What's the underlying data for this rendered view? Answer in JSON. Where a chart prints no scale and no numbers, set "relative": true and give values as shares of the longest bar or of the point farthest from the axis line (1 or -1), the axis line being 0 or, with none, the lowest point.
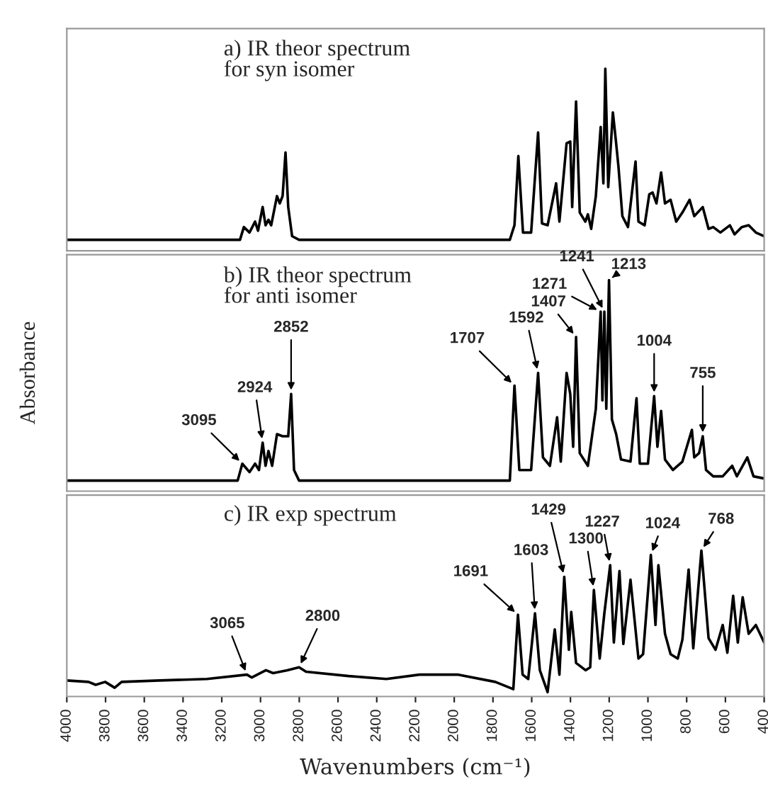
{
  "chart_data": [
    {
      "type": "line",
      "title": "a) IR theor spectrum\nfor syn isomer",
      "relative": true,
      "xlim": [
        4000,
        400
      ],
      "tick_labels": false,
      "grid": false,
      "series": [
        {
          "color": "#000000",
          "x": [
            4000,
            3106,
            3086,
            3057,
            3028,
            3013,
            2989,
            2974,
            2959,
            2945,
            2915,
            2901,
            2886,
            2871,
            2857,
            2837,
            2801,
            1713,
            1689,
            1669,
            1645,
            1603,
            1567,
            1547,
            1518,
            1474,
            1457,
            1420,
            1401,
            1391,
            1371,
            1352,
            1323,
            1310,
            1293,
            1269,
            1244,
            1230,
            1220,
            1205,
            1181,
            1166,
            1152,
            1132,
            1103,
            1064,
            1049,
            1017,
            993,
            976,
            956,
            932,
            912,
            883,
            854,
            822,
            785,
            761,
            717,
            687,
            663,
            626,
            577,
            553,
            516,
            480,
            443,
            400
          ],
          "values": [
            0.06,
            0.06,
            0.13,
            0.1,
            0.16,
            0.11,
            0.24,
            0.14,
            0.17,
            0.14,
            0.3,
            0.26,
            0.3,
            0.54,
            0.24,
            0.08,
            0.06,
            0.06,
            0.14,
            0.52,
            0.1,
            0.1,
            0.65,
            0.15,
            0.14,
            0.37,
            0.16,
            0.59,
            0.6,
            0.24,
            0.82,
            0.21,
            0.16,
            0.2,
            0.12,
            0.3,
            0.68,
            0.37,
            1.0,
            0.35,
            0.76,
            0.61,
            0.46,
            0.19,
            0.13,
            0.49,
            0.16,
            0.14,
            0.31,
            0.32,
            0.26,
            0.43,
            0.26,
            0.28,
            0.16,
            0.21,
            0.28,
            0.19,
            0.24,
            0.12,
            0.13,
            0.1,
            0.14,
            0.09,
            0.13,
            0.14,
            0.1,
            0.08
          ]
        }
      ]
    },
    {
      "type": "line",
      "title": "b) IR theor spectrum\nfor anti isomer",
      "ylabel": "Absorbance",
      "relative": true,
      "xlim": [
        4000,
        400
      ],
      "tick_labels": false,
      "grid": false,
      "series": [
        {
          "color": "#000000",
          "x": [
            4000,
            3118,
            3094,
            3057,
            3028,
            3008,
            2989,
            2974,
            2959,
            2940,
            2915,
            2886,
            2857,
            2842,
            2827,
            2801,
            1713,
            1689,
            1664,
            1603,
            1567,
            1542,
            1506,
            1469,
            1450,
            1420,
            1401,
            1386,
            1371,
            1352,
            1310,
            1269,
            1244,
            1235,
            1225,
            1215,
            1201,
            1186,
            1164,
            1139,
            1090,
            1059,
            1042,
            1000,
            968,
            951,
            932,
            912,
            871,
            822,
            773,
            761,
            736,
            717,
            700,
            663,
            614,
            565,
            541,
            487,
            455,
            400
          ],
          "values": [
            0.05,
            0.05,
            0.13,
            0.09,
            0.13,
            0.1,
            0.23,
            0.12,
            0.19,
            0.12,
            0.27,
            0.26,
            0.26,
            0.46,
            0.1,
            0.05,
            0.05,
            0.5,
            0.1,
            0.1,
            0.56,
            0.16,
            0.12,
            0.35,
            0.14,
            0.56,
            0.46,
            0.21,
            0.73,
            0.18,
            0.12,
            0.39,
            0.85,
            0.43,
            0.85,
            0.39,
            1.0,
            0.34,
            0.27,
            0.15,
            0.14,
            0.44,
            0.13,
            0.13,
            0.45,
            0.21,
            0.38,
            0.15,
            0.1,
            0.14,
            0.29,
            0.16,
            0.18,
            0.26,
            0.1,
            0.07,
            0.07,
            0.12,
            0.07,
            0.16,
            0.07,
            0.06
          ]
        }
      ],
      "annotations": [
        {
          "text": "3095",
          "x": 3094,
          "y": 0.13
        },
        {
          "text": "2924",
          "x": 2989,
          "y": 0.23
        },
        {
          "text": "2852",
          "x": 2842,
          "y": 0.46
        },
        {
          "text": "1707",
          "x": 1689,
          "y": 0.5
        },
        {
          "text": "1592",
          "x": 1567,
          "y": 0.56
        },
        {
          "text": "1407",
          "x": 1371,
          "y": 0.73
        },
        {
          "text": "1271",
          "x": 1244,
          "y": 0.85
        },
        {
          "text": "1241",
          "x": 1225,
          "y": 0.85
        },
        {
          "text": "1213",
          "x": 1201,
          "y": 1.0
        },
        {
          "text": "1004",
          "x": 968,
          "y": 0.45
        },
        {
          "text": "755",
          "x": 717,
          "y": 0.26
        }
      ]
    },
    {
      "type": "line",
      "title": "c) IR exp spectrum",
      "xlabel": "Wavenumbers (cm⁻¹)",
      "relative": true,
      "xlim": [
        4000,
        400
      ],
      "tick_labels": "x",
      "grid": false,
      "xticks": [
        4000,
        3800,
        3600,
        3400,
        3200,
        3000,
        2800,
        2600,
        2400,
        2200,
        2000,
        1800,
        1600,
        1400,
        1200,
        1000,
        800,
        600,
        400
      ],
      "series": [
        {
          "color": "#000000",
          "x": [
            4000,
            3888,
            3851,
            3802,
            3753,
            3717,
            3522,
            3277,
            3070,
            3045,
            2972,
            2935,
            2862,
            2801,
            2765,
            2545,
            2350,
            2179,
            1983,
            1788,
            1695,
            1671,
            1647,
            1618,
            1583,
            1558,
            1518,
            1481,
            1457,
            1432,
            1408,
            1396,
            1371,
            1322,
            1298,
            1279,
            1249,
            1225,
            1195,
            1176,
            1147,
            1127,
            1090,
            1049,
            1025,
            985,
            961,
            946,
            912,
            883,
            846,
            822,
            790,
            766,
            724,
            687,
            651,
            614,
            590,
            560,
            536,
            511,
            480,
            443,
            400
          ],
          "values": [
            0.11,
            0.1,
            0.08,
            0.1,
            0.06,
            0.1,
            0.11,
            0.12,
            0.15,
            0.13,
            0.18,
            0.16,
            0.18,
            0.2,
            0.17,
            0.14,
            0.12,
            0.15,
            0.15,
            0.1,
            0.05,
            0.56,
            0.15,
            0.12,
            0.57,
            0.18,
            0.03,
            0.46,
            0.15,
            0.82,
            0.32,
            0.58,
            0.23,
            0.18,
            0.2,
            0.73,
            0.26,
            0.57,
            0.9,
            0.37,
            0.86,
            0.36,
            0.8,
            0.26,
            0.29,
            0.97,
            0.49,
            0.9,
            0.43,
            0.29,
            0.26,
            0.39,
            0.87,
            0.33,
            1.0,
            0.4,
            0.32,
            0.49,
            0.3,
            0.69,
            0.37,
            0.68,
            0.43,
            0.49,
            0.37
          ]
        }
      ],
      "annotations": [
        {
          "text": "3065",
          "x": 3070,
          "y": 0.15
        },
        {
          "text": "2800",
          "x": 2801,
          "y": 0.2
        },
        {
          "text": "1691",
          "x": 1671,
          "y": 0.56
        },
        {
          "text": "1603",
          "x": 1583,
          "y": 0.57
        },
        {
          "text": "1429",
          "x": 1432,
          "y": 0.82
        },
        {
          "text": "1300",
          "x": 1279,
          "y": 0.73
        },
        {
          "text": "1227",
          "x": 1195,
          "y": 0.9
        },
        {
          "text": "1024",
          "x": 985,
          "y": 0.97
        },
        {
          "text": "768",
          "x": 724,
          "y": 1.0
        }
      ]
    }
  ]
}
